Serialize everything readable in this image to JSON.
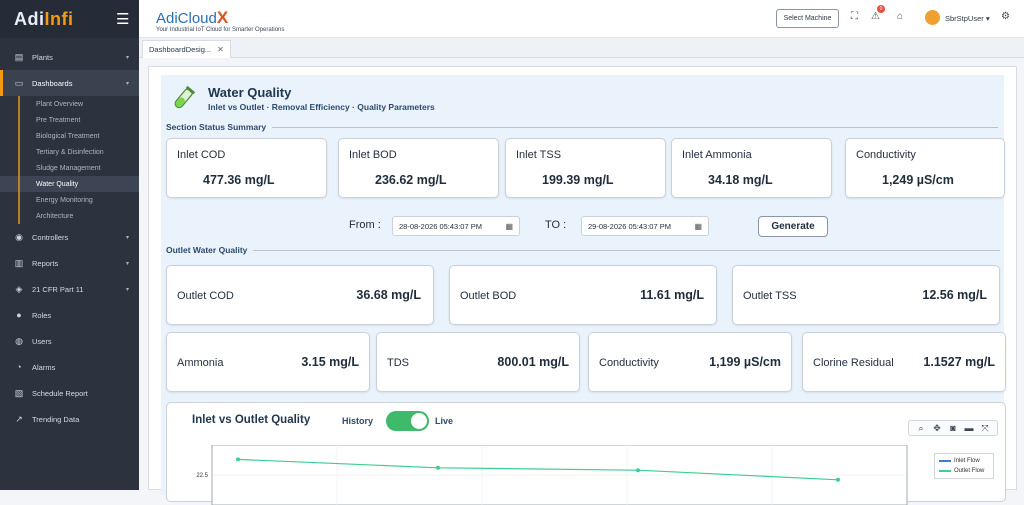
{
  "brand": {
    "name_main": "Adi",
    "name_accent": "Infi"
  },
  "sidebar": {
    "items": [
      {
        "label": "Plants",
        "icon": "plant-icon",
        "has_children": true
      },
      {
        "label": "Dashboards",
        "icon": "monitor-icon",
        "has_children": true,
        "active": true
      },
      {
        "label": "Controllers",
        "icon": "controller-icon",
        "has_children": true
      },
      {
        "label": "Reports",
        "icon": "report-icon",
        "has_children": true
      },
      {
        "label": "21 CFR Part 11",
        "icon": "cfr-icon",
        "has_children": true
      },
      {
        "label": "Roles",
        "icon": "roles-icon",
        "has_children": false
      },
      {
        "label": "Users",
        "icon": "users-icon",
        "has_children": false
      },
      {
        "label": "Alarms",
        "icon": "alarm-icon",
        "has_children": false
      },
      {
        "label": "Schedule Report",
        "icon": "schedule-icon",
        "has_children": false
      },
      {
        "label": "Trending Data",
        "icon": "trend-icon",
        "has_children": false
      }
    ],
    "dashboard_sub": [
      "Plant Overview",
      "Pre Treatment",
      "Biological Treatment",
      "Tertiary & Disinfection",
      "Sludge Management",
      "Water Quality",
      "Energy Monitoring",
      "Architecture"
    ],
    "dashboard_sub_active": "Water Quality"
  },
  "header": {
    "title": "AdiCloud",
    "title_x": "X",
    "tagline": "Your Industrial IoT Cloud for Smarter Operations",
    "select_machine": "Select Machine",
    "alert_count": "0",
    "username": "SbrStpUser"
  },
  "tabs": [
    {
      "label": "DashboardDesig..."
    }
  ],
  "page": {
    "title": "Water Quality",
    "subtitle": "Inlet vs Outlet · Removal Efficiency · Quality Parameters",
    "section_status": "Section Status Summary",
    "section_outlet": "Outlet Water Quality"
  },
  "inlet_cards": [
    {
      "label": "Inlet COD",
      "value": "477.36 mg/L"
    },
    {
      "label": "Inlet BOD",
      "value": "236.62 mg/L"
    },
    {
      "label": "Inlet TSS",
      "value": "199.39 mg/L"
    },
    {
      "label": "Inlet Ammonia",
      "value": "34.18 mg/L"
    },
    {
      "label": "Conductivity",
      "value": "1,249 µS/cm"
    }
  ],
  "filter": {
    "from_label": "From :",
    "from_value": "28-08-2026 05:43:07 PM",
    "to_label": "TO :",
    "to_value": "29-08-2026 05:43:07 PM",
    "generate": "Generate"
  },
  "outlet_cards_row1": [
    {
      "label": "Outlet COD",
      "value": "36.68 mg/L"
    },
    {
      "label": "Outlet BOD",
      "value": "11.61 mg/L"
    },
    {
      "label": "Outlet TSS",
      "value": "12.56 mg/L"
    }
  ],
  "outlet_cards_row2": [
    {
      "label": "Ammonia",
      "value": "3.15 mg/L"
    },
    {
      "label": "TDS",
      "value": "800.01 mg/L"
    },
    {
      "label": "Conductivity",
      "value": "1,199 µS/cm"
    },
    {
      "label": "Clorine Residual",
      "value": "1.1527 mg/L"
    }
  ],
  "chart": {
    "title": "Inlet vs Outlet Quality",
    "history_label": "History",
    "live_label": "Live",
    "live_on": true,
    "colors": {
      "inlet": "#3b7fc4",
      "outlet": "#3ccf91"
    }
  },
  "chart_data": {
    "type": "line",
    "title": "Inlet vs Outlet Quality",
    "y_tick_labels": [
      "22.5"
    ],
    "series": [
      {
        "name": "Inlet Flow",
        "values": []
      },
      {
        "name": "Outlet Flow",
        "values": [
          23.8,
          23.1,
          22.9,
          22.1
        ]
      }
    ],
    "legend_position": "top-right",
    "grid": true
  }
}
